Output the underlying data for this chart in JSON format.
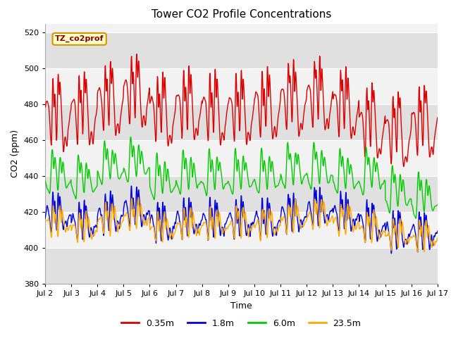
{
  "title": "Tower CO2 Profile Concentrations",
  "xlabel": "Time",
  "ylabel": "CO2 (ppm)",
  "ylim": [
    380,
    525
  ],
  "yticks": [
    380,
    400,
    420,
    440,
    460,
    480,
    500,
    520
  ],
  "series": [
    {
      "label": "0.35m",
      "color": "#dd0000"
    },
    {
      "label": "1.8m",
      "color": "#0000dd"
    },
    {
      "label": "6.0m",
      "color": "#00cc00"
    },
    {
      "label": "23.5m",
      "color": "#ffaa00"
    }
  ],
  "annotation_text": "TZ_co2prof",
  "annotation_bgcolor": "#ffffcc",
  "annotation_edgecolor": "#cc9900",
  "fig_facecolor": "#ffffff",
  "plot_bg_color": "#f2f2f2",
  "grid_color": "#ffffff",
  "band_color": "#e0e0e0",
  "n_days": 15,
  "pts_per_day": 96,
  "date_labels": [
    "Jul 2",
    "Jul 3",
    "Jul 4",
    "Jul 5",
    "Jul 6",
    "Jul 7",
    "Jul 8",
    "Jul 9",
    "Jul 10",
    "Jul 11",
    "Jul 12",
    "Jul 13",
    "Jul 14",
    "Jul 15",
    "Jul 16",
    "Jul 17"
  ]
}
